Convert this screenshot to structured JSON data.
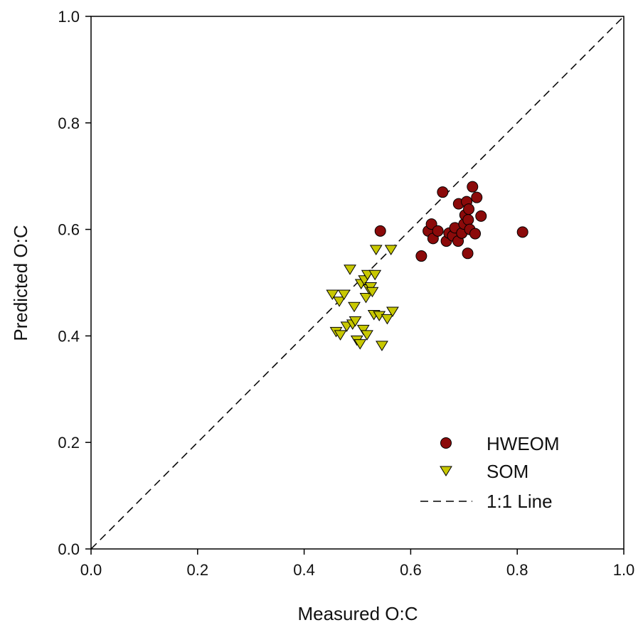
{
  "chart_data": {
    "type": "scatter",
    "xlabel": "Measured O:C",
    "ylabel": "Predicted O:C",
    "xlim": [
      0.0,
      1.0
    ],
    "ylim": [
      0.0,
      1.0
    ],
    "x_ticks": [
      "0.0",
      "0.2",
      "0.4",
      "0.6",
      "0.8",
      "1.0"
    ],
    "y_ticks": [
      "0.0",
      "0.2",
      "0.4",
      "0.6",
      "0.8",
      "1.0"
    ],
    "grid": false,
    "legend_position": "bottom-right",
    "series": [
      {
        "name": "HWEOM",
        "marker": "circle",
        "color": "#8b0a0a",
        "points": [
          [
            0.543,
            0.597
          ],
          [
            0.62,
            0.55
          ],
          [
            0.633,
            0.597
          ],
          [
            0.639,
            0.61
          ],
          [
            0.642,
            0.583
          ],
          [
            0.651,
            0.597
          ],
          [
            0.66,
            0.67
          ],
          [
            0.667,
            0.578
          ],
          [
            0.672,
            0.593
          ],
          [
            0.679,
            0.588
          ],
          [
            0.683,
            0.603
          ],
          [
            0.689,
            0.578
          ],
          [
            0.69,
            0.648
          ],
          [
            0.696,
            0.593
          ],
          [
            0.7,
            0.61
          ],
          [
            0.702,
            0.627
          ],
          [
            0.705,
            0.652
          ],
          [
            0.707,
            0.555
          ],
          [
            0.708,
            0.618
          ],
          [
            0.709,
            0.638
          ],
          [
            0.711,
            0.6
          ],
          [
            0.716,
            0.68
          ],
          [
            0.721,
            0.592
          ],
          [
            0.724,
            0.66
          ],
          [
            0.732,
            0.625
          ],
          [
            0.81,
            0.595
          ]
        ]
      },
      {
        "name": "SOM",
        "marker": "triangle-down",
        "color": "#c8c800",
        "points": [
          [
            0.453,
            0.478
          ],
          [
            0.46,
            0.408
          ],
          [
            0.466,
            0.465
          ],
          [
            0.468,
            0.402
          ],
          [
            0.475,
            0.478
          ],
          [
            0.48,
            0.418
          ],
          [
            0.486,
            0.525
          ],
          [
            0.491,
            0.422
          ],
          [
            0.494,
            0.455
          ],
          [
            0.496,
            0.428
          ],
          [
            0.499,
            0.392
          ],
          [
            0.505,
            0.385
          ],
          [
            0.507,
            0.498
          ],
          [
            0.511,
            0.412
          ],
          [
            0.513,
            0.505
          ],
          [
            0.516,
            0.472
          ],
          [
            0.518,
            0.402
          ],
          [
            0.519,
            0.515
          ],
          [
            0.522,
            0.488
          ],
          [
            0.525,
            0.492
          ],
          [
            0.528,
            0.483
          ],
          [
            0.531,
            0.44
          ],
          [
            0.533,
            0.515
          ],
          [
            0.535,
            0.562
          ],
          [
            0.541,
            0.438
          ],
          [
            0.546,
            0.382
          ],
          [
            0.556,
            0.432
          ],
          [
            0.563,
            0.562
          ],
          [
            0.566,
            0.446
          ]
        ]
      }
    ],
    "reference_line": {
      "name": "1:1 Line",
      "style": "dashed",
      "from": [
        0.0,
        0.0
      ],
      "to": [
        1.0,
        1.0
      ]
    }
  },
  "legend": {
    "items": [
      {
        "label": "HWEOM"
      },
      {
        "label": "SOM"
      },
      {
        "label": "1:1 Line"
      }
    ]
  }
}
